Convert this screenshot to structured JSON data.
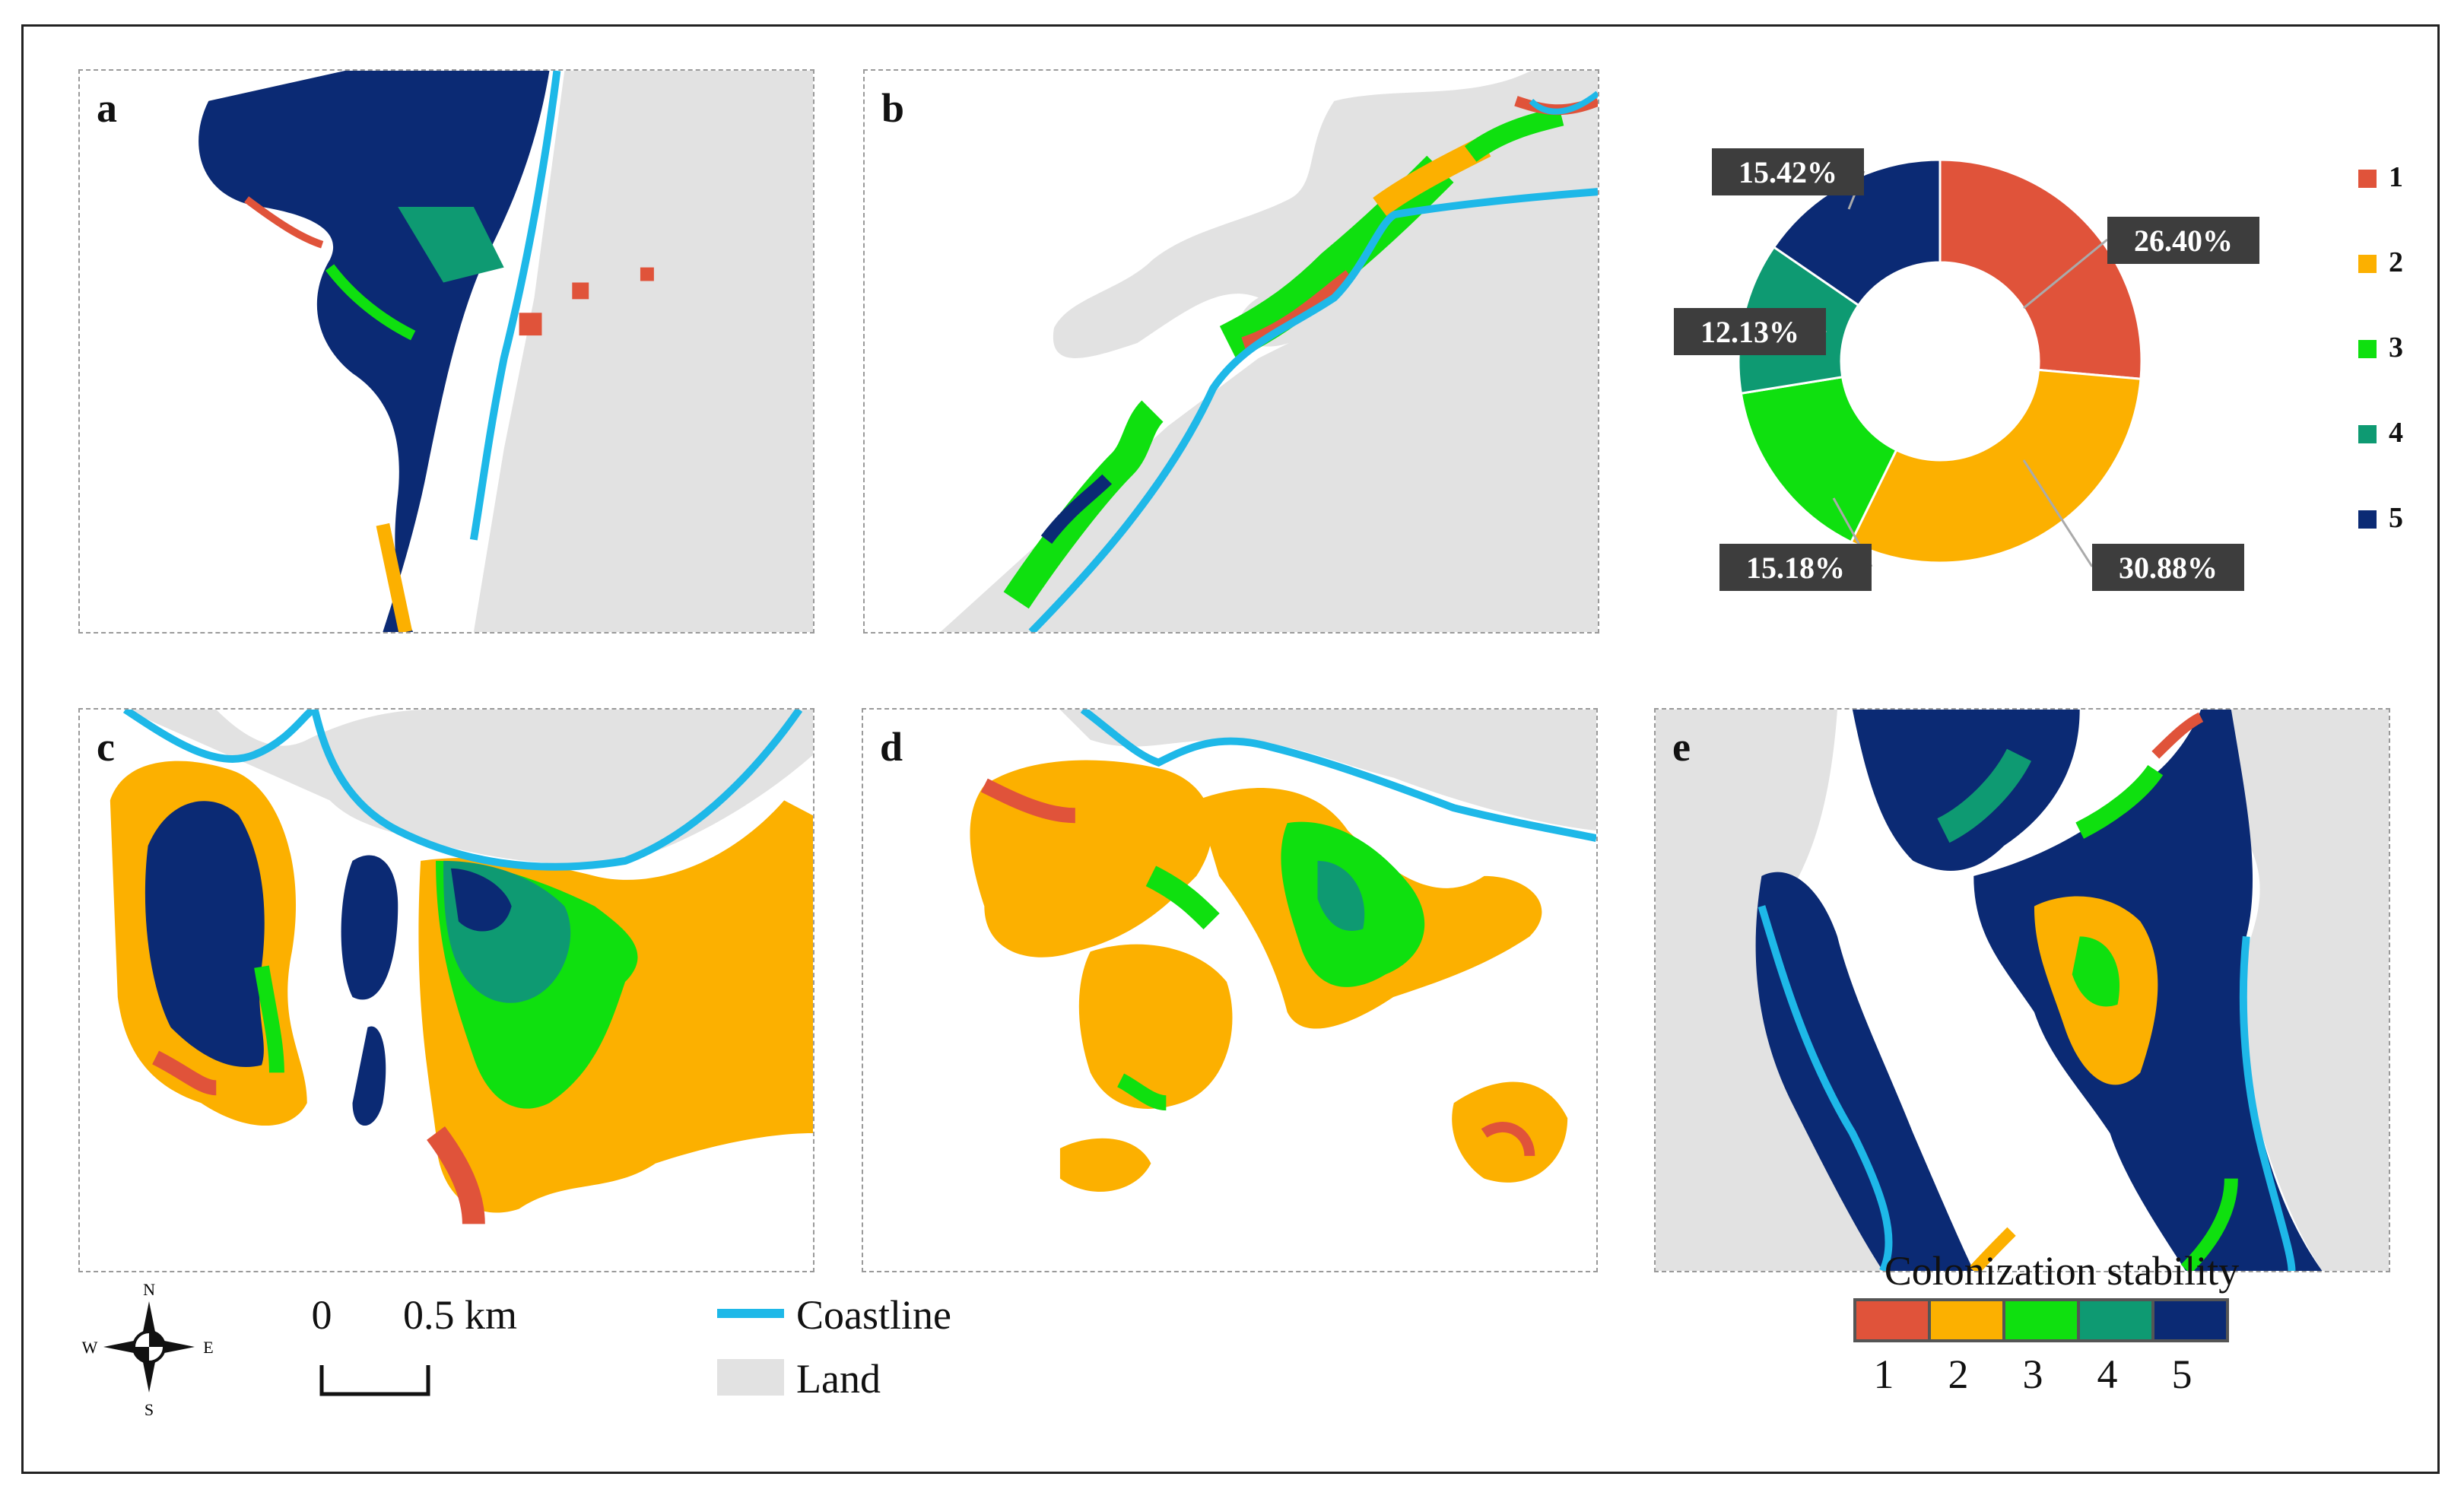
{
  "panels": [
    {
      "id": "a",
      "label": "a"
    },
    {
      "id": "b",
      "label": "b"
    },
    {
      "id": "c",
      "label": "c"
    },
    {
      "id": "d",
      "label": "d"
    },
    {
      "id": "e",
      "label": "e"
    }
  ],
  "donut": {
    "slices": [
      {
        "class": "1",
        "percent": 26.4,
        "label": "26.40%",
        "color": "#E0533A"
      },
      {
        "class": "2",
        "percent": 30.88,
        "label": "30.88%",
        "color": "#FCB000"
      },
      {
        "class": "3",
        "percent": 15.18,
        "label": "15.18%",
        "color": "#0FE00F"
      },
      {
        "class": "4",
        "percent": 12.13,
        "label": "12.13%",
        "color": "#0E9A72"
      },
      {
        "class": "5",
        "percent": 15.42,
        "label": "15.42%",
        "color": "#0B2A74"
      }
    ],
    "legend": [
      "1",
      "2",
      "3",
      "4",
      "5"
    ]
  },
  "colors": {
    "c1": "#E0533A",
    "c2": "#FCB000",
    "c3": "#0FE00F",
    "c4": "#0E9A72",
    "c5": "#0B2A74",
    "land": "#E2E2E2",
    "coastline": "#1EB8E8"
  },
  "compass": {
    "n": "N",
    "s": "S",
    "e": "E",
    "w": "W"
  },
  "scalebar": {
    "zero": "0",
    "end": "0.5 km"
  },
  "map_legend": {
    "coastline": "Coastline",
    "land": "Land"
  },
  "stability_legend": {
    "title": "Colonization stability",
    "classes": [
      "1",
      "2",
      "3",
      "4",
      "5"
    ]
  }
}
